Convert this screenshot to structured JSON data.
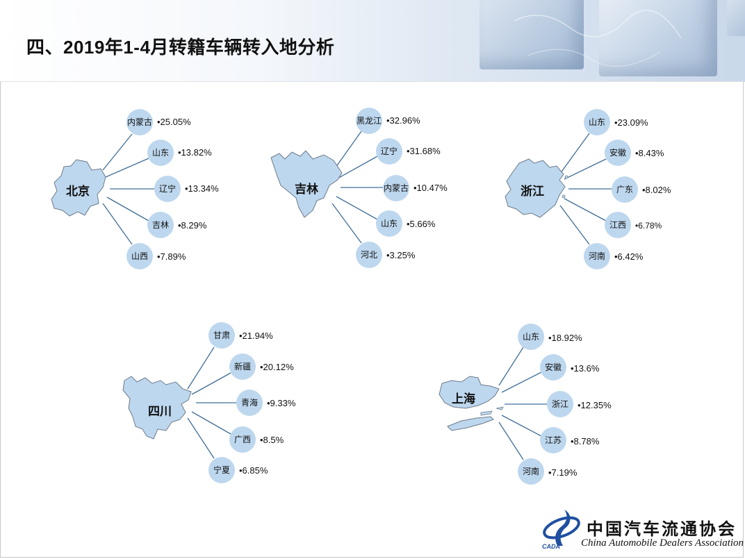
{
  "title": "四、2019年1-4月转籍车辆转入地分析",
  "colors": {
    "node": "#bdd7ee",
    "line": "#3f6d96",
    "map": "#bdd7ee",
    "map_stroke": "#6c7a89"
  },
  "groups": [
    {
      "region": "北京",
      "items": [
        {
          "name": "内蒙古",
          "value": "•25.05%"
        },
        {
          "name": "山东",
          "value": "•13.82%"
        },
        {
          "name": "辽宁",
          "value": "•13.34%"
        },
        {
          "name": "吉林",
          "value": "•8.29%"
        },
        {
          "name": "山西",
          "value": "•7.89%"
        }
      ]
    },
    {
      "region": "吉林",
      "items": [
        {
          "name": "黑龙江",
          "value": "•32.96%"
        },
        {
          "name": "辽宁",
          "value": "•31.68%"
        },
        {
          "name": "内蒙古",
          "value": "•10.47%"
        },
        {
          "name": "山东",
          "value": "•5.66%"
        },
        {
          "name": "河北",
          "value": "•3.25%"
        }
      ]
    },
    {
      "region": "浙江",
      "items": [
        {
          "name": "山东",
          "value": "•23.09%"
        },
        {
          "name": "安徽",
          "value": "•8.43%"
        },
        {
          "name": "广东",
          "value": "•8.02%"
        },
        {
          "name": "江西",
          "value": "•6.78%"
        },
        {
          "name": "河南",
          "value": "•6.42%"
        }
      ]
    },
    {
      "region": "四川",
      "items": [
        {
          "name": "甘肃",
          "value": "•21.94%"
        },
        {
          "name": "新疆",
          "value": "•20.12%"
        },
        {
          "name": "青海",
          "value": "•9.33%"
        },
        {
          "name": "广西",
          "value": "•8.5%"
        },
        {
          "name": "宁夏",
          "value": "•6.85%"
        }
      ]
    },
    {
      "region": "上海",
      "items": [
        {
          "name": "山东",
          "value": "•18.92%"
        },
        {
          "name": "安徽",
          "value": "•13.6%"
        },
        {
          "name": "浙江",
          "value": "•12.35%"
        },
        {
          "name": "江苏",
          "value": "•8.78%"
        },
        {
          "name": "河南",
          "value": "•7.19%"
        }
      ]
    }
  ],
  "logo": {
    "cn": "中国汽车流通协会",
    "en": "China Automobile Dealers Association",
    "abbr": "CADA"
  }
}
